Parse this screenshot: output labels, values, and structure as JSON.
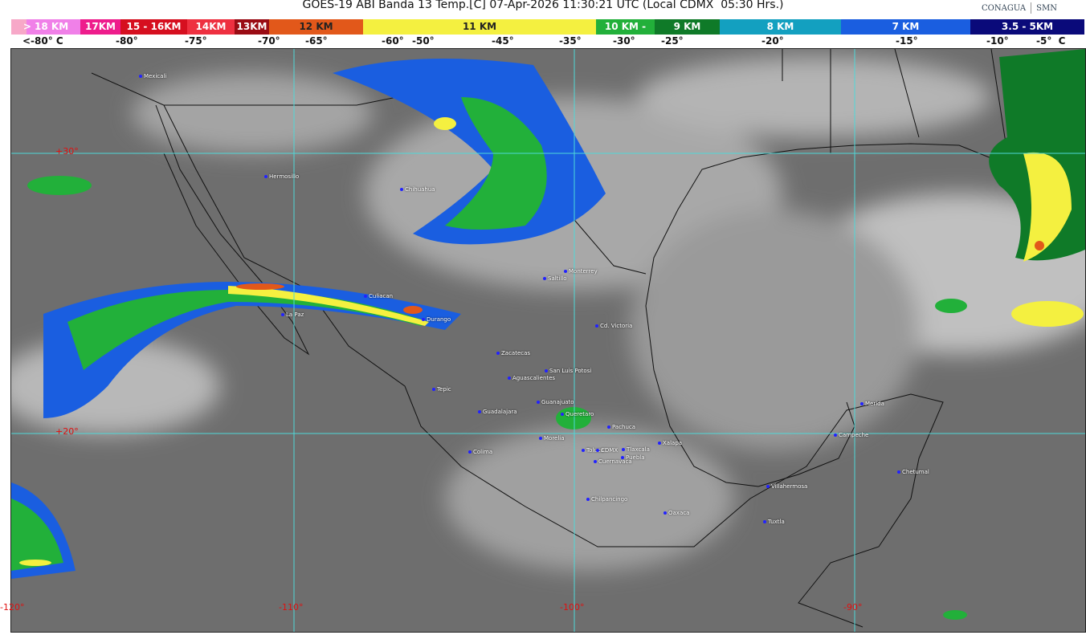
{
  "title": "GOES-19 ABI Banda 13 Temp.[C] 07-Apr-2026 11:30:21 UTC (Local CDMX  05:30 Hrs.)",
  "logos": {
    "conagua": "CONAGUA",
    "smn": "SMN"
  },
  "legend": {
    "segments": [
      {
        "label": "> 18 KM",
        "color": "#f080e8"
      },
      {
        "label": "17KM",
        "color": "#ee1c8c"
      },
      {
        "label": "15 - 16KM",
        "color": "#d60f1f"
      },
      {
        "label": "14KM",
        "color": "#ee3040"
      },
      {
        "label": "13KM",
        "color": "#9a0c14"
      },
      {
        "label": "12 KM",
        "color": "#e2581a"
      },
      {
        "label": "11 KM",
        "color": "#f4f040"
      },
      {
        "label": "10 KM -",
        "color": "#22b03a"
      },
      {
        "label": "9 KM",
        "color": "#0f7a28"
      },
      {
        "label": "8 KM",
        "color": "#13a0c0"
      },
      {
        "label": "7 KM",
        "color": "#1a5ee0"
      },
      {
        "label": "3.5 - 5KM",
        "color": "#0a0a7a"
      }
    ],
    "ticks": [
      "<-80° C",
      "-80°",
      "-75°",
      "-70°",
      "-65°",
      "-60°",
      "-50°",
      "-45°",
      "-35°",
      "-30°",
      "-25°",
      "-20°",
      "-15°",
      "-10°",
      "-5°  C"
    ]
  },
  "grid": {
    "latitudes": [
      "+30°",
      "+20°"
    ],
    "longitudes": [
      "-120°",
      "-110°",
      "-100°",
      "-90°"
    ]
  },
  "cities": [
    "Mexicali",
    "Hermosillo",
    "Chihuahua",
    "Monterrey",
    "Saltillo",
    "Culiacan",
    "La Paz",
    "Durango",
    "Cd. Victoria",
    "Zacatecas",
    "San Luis Potosi",
    "Aguascalientes",
    "Tepic",
    "Guanajuato",
    "Queretaro",
    "Guadalajara",
    "Pachuca",
    "Morelia",
    "Xalapa",
    "Colima",
    "Toluca",
    "CDMX",
    "Tlaxcala",
    "Puebla",
    "Cuernavaca",
    "Chilpancingo",
    "Oaxaca",
    "Villahermosa",
    "Tuxtla",
    "Merida",
    "Campeche",
    "Chetumal"
  ]
}
